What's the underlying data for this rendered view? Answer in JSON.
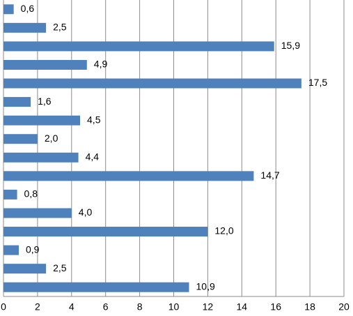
{
  "chart_data": {
    "type": "bar",
    "orientation": "horizontal",
    "values": [
      0.6,
      2.5,
      15.9,
      4.9,
      17.5,
      1.6,
      4.5,
      2.0,
      4.4,
      14.7,
      0.8,
      4.0,
      12.0,
      0.9,
      2.5,
      10.9
    ],
    "value_labels": [
      "0,6",
      "2,5",
      "15,9",
      "4,9",
      "17,5",
      "1,6",
      "4,5",
      "2,0",
      "4,4",
      "14,7",
      "0,8",
      "4,0",
      "12,0",
      "0,9",
      "2,5",
      "10,9"
    ],
    "color": "#4f81bd",
    "xlim": [
      0,
      20
    ],
    "xticks": [
      0,
      2,
      4,
      6,
      8,
      10,
      12,
      14,
      16,
      18,
      20
    ],
    "grid": true
  }
}
